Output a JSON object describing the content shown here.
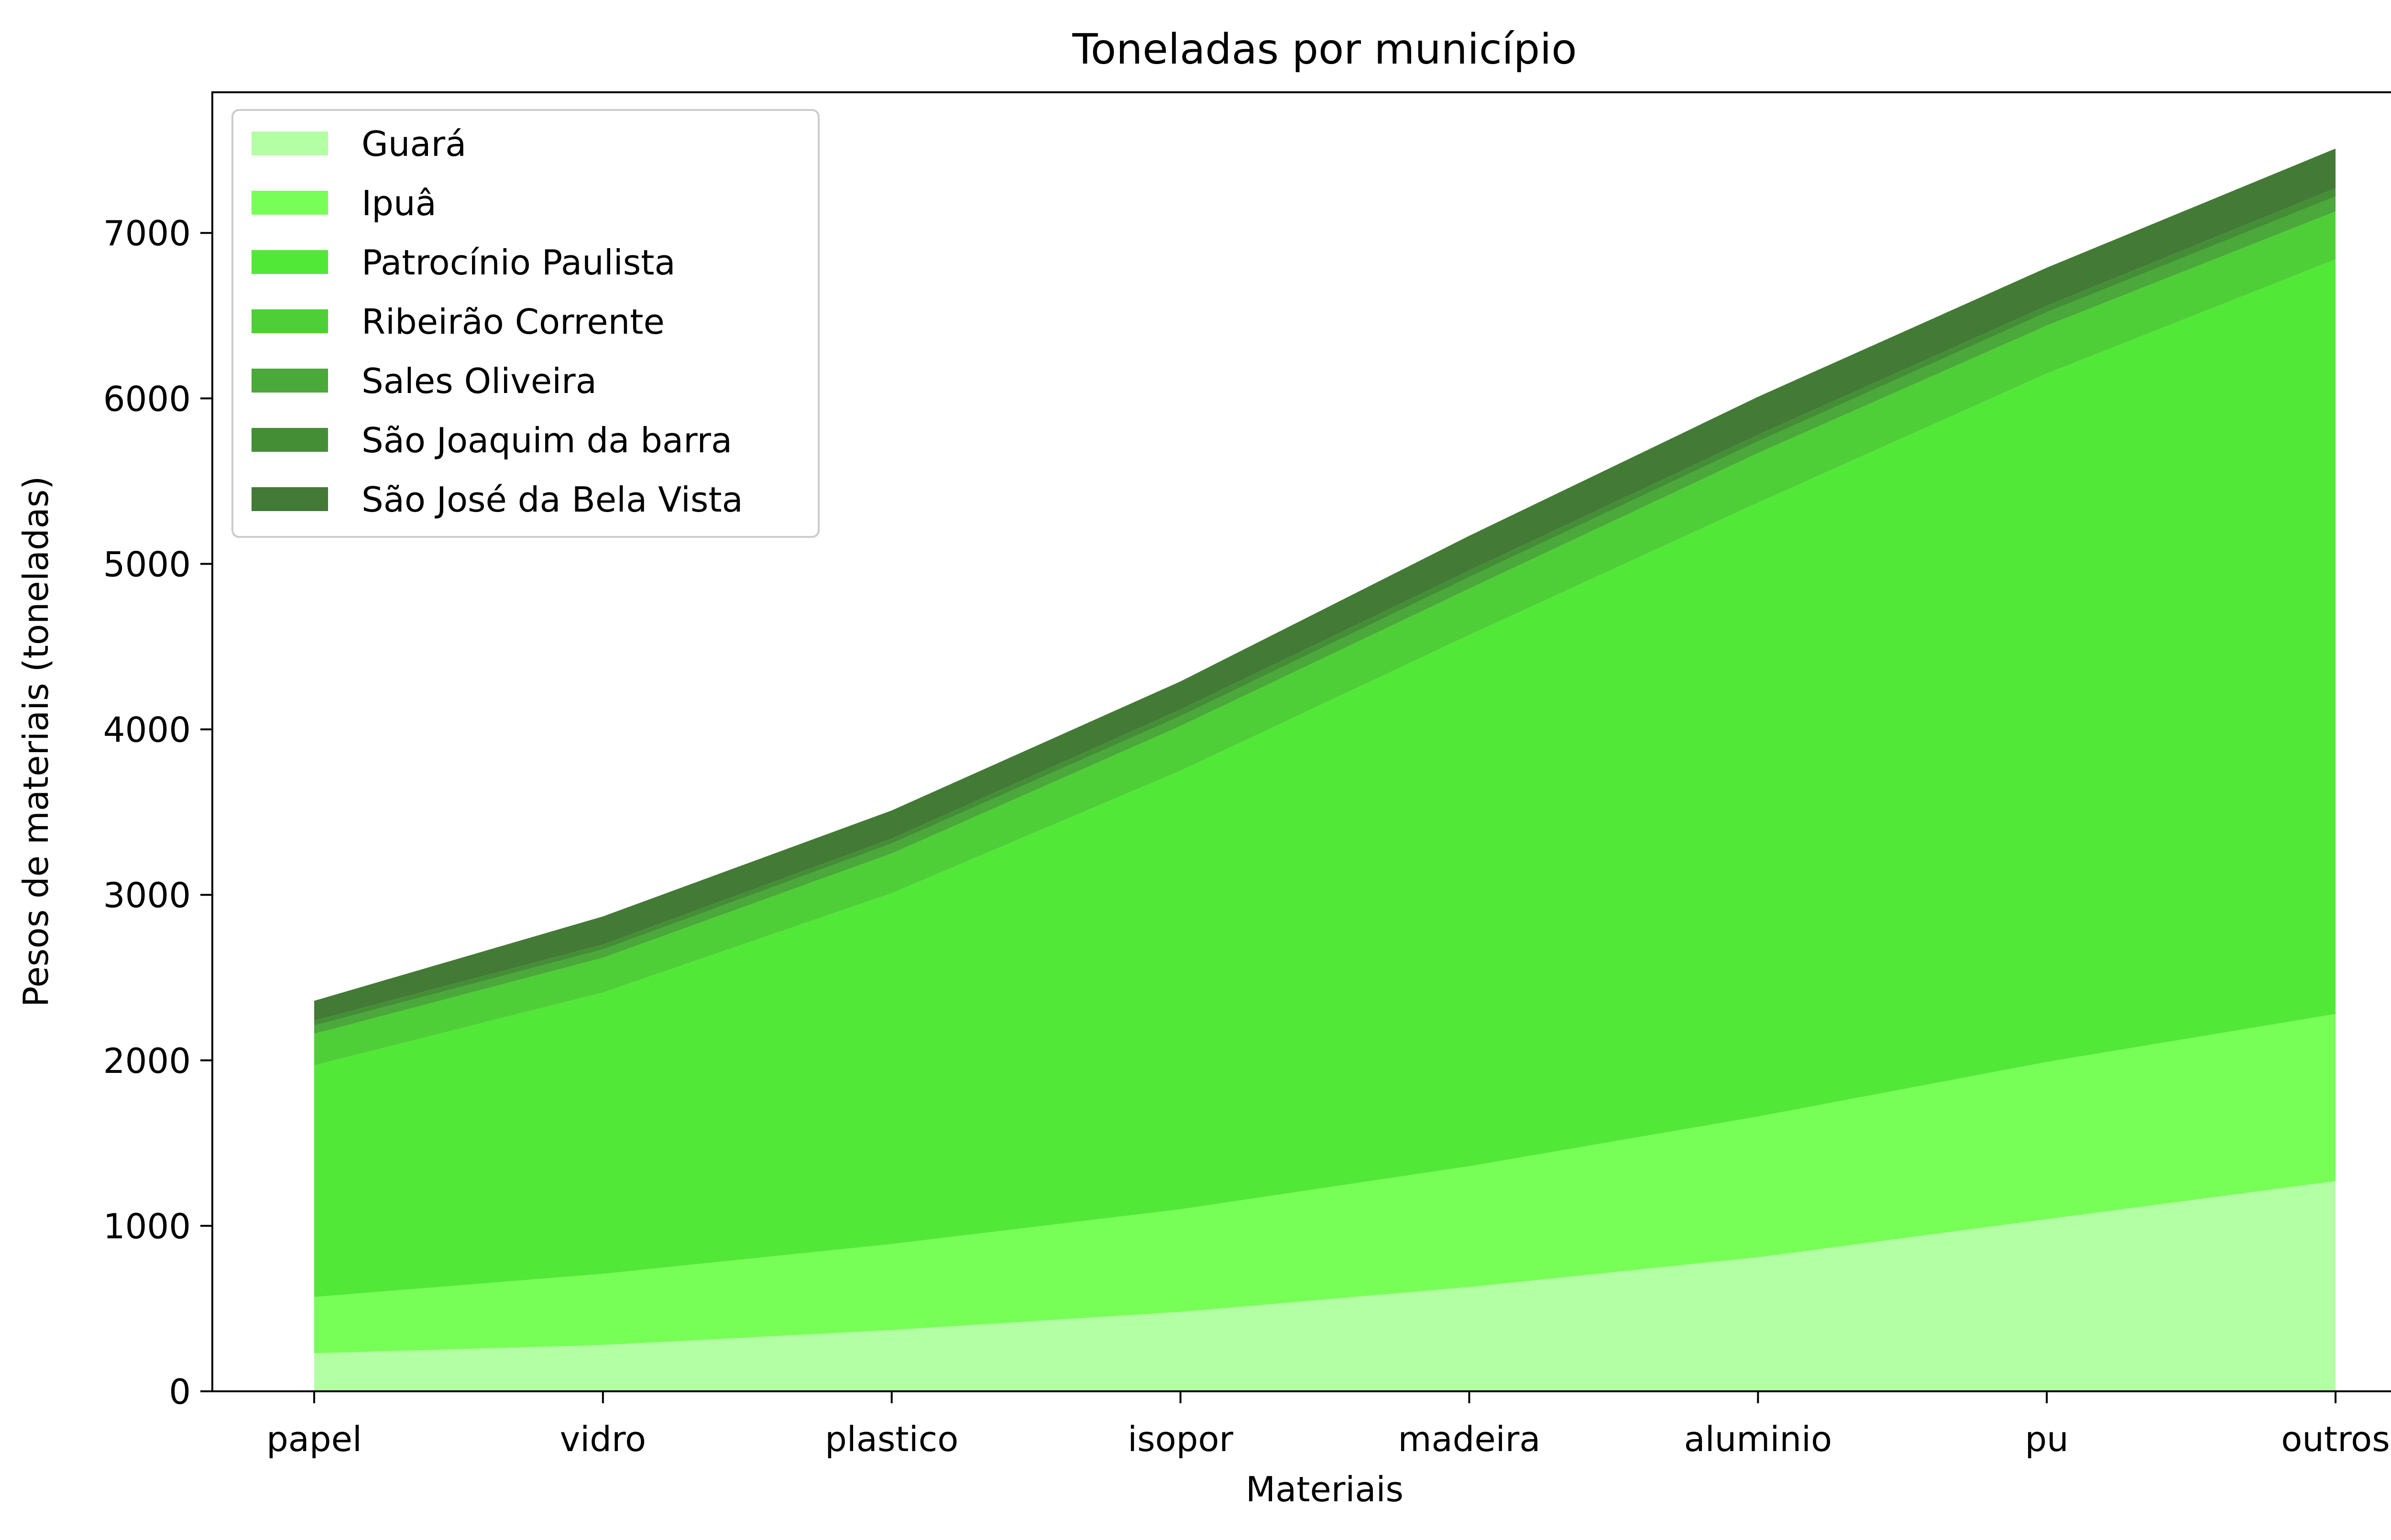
{
  "chart_data": {
    "type": "area",
    "stacked": true,
    "title": "Toneladas por município",
    "xlabel": "Materiais",
    "ylabel": "Pesos de materiais (toneladas)",
    "categories": [
      "papel",
      "vidro",
      "plastico",
      "isopor",
      "madeira",
      "aluminio",
      "pu",
      "outros"
    ],
    "ylim": [
      0,
      7850
    ],
    "yticks": [
      0,
      1000,
      2000,
      3000,
      4000,
      5000,
      6000,
      7000
    ],
    "grid": false,
    "legend_position": "top-left",
    "series": [
      {
        "name": "Guará",
        "color": "#b3ffa3",
        "values": [
          230,
          280,
          370,
          480,
          630,
          810,
          1040,
          1270
        ]
      },
      {
        "name": "Ipuâ",
        "color": "#77ff57",
        "values": [
          340,
          430,
          520,
          620,
          730,
          850,
          950,
          1010
        ]
      },
      {
        "name": "Patrocínio Paulista",
        "color": "#52e838",
        "values": [
          1400,
          1700,
          2120,
          2650,
          3210,
          3710,
          4160,
          4560
        ]
      },
      {
        "name": "Ribeirão Corrente",
        "color": "#4fcf37",
        "values": [
          190,
          210,
          240,
          270,
          280,
          300,
          290,
          290
        ]
      },
      {
        "name": "Sales Oliveira",
        "color": "#4ba83a",
        "values": [
          50,
          50,
          60,
          60,
          70,
          70,
          80,
          90
        ]
      },
      {
        "name": "São Joaquim da barra",
        "color": "#448f36",
        "values": [
          30,
          30,
          30,
          40,
          40,
          40,
          40,
          50
        ]
      },
      {
        "name": "São José da Bela Vista",
        "color": "#437a36",
        "values": [
          120,
          170,
          170,
          170,
          210,
          230,
          230,
          240
        ]
      }
    ]
  }
}
